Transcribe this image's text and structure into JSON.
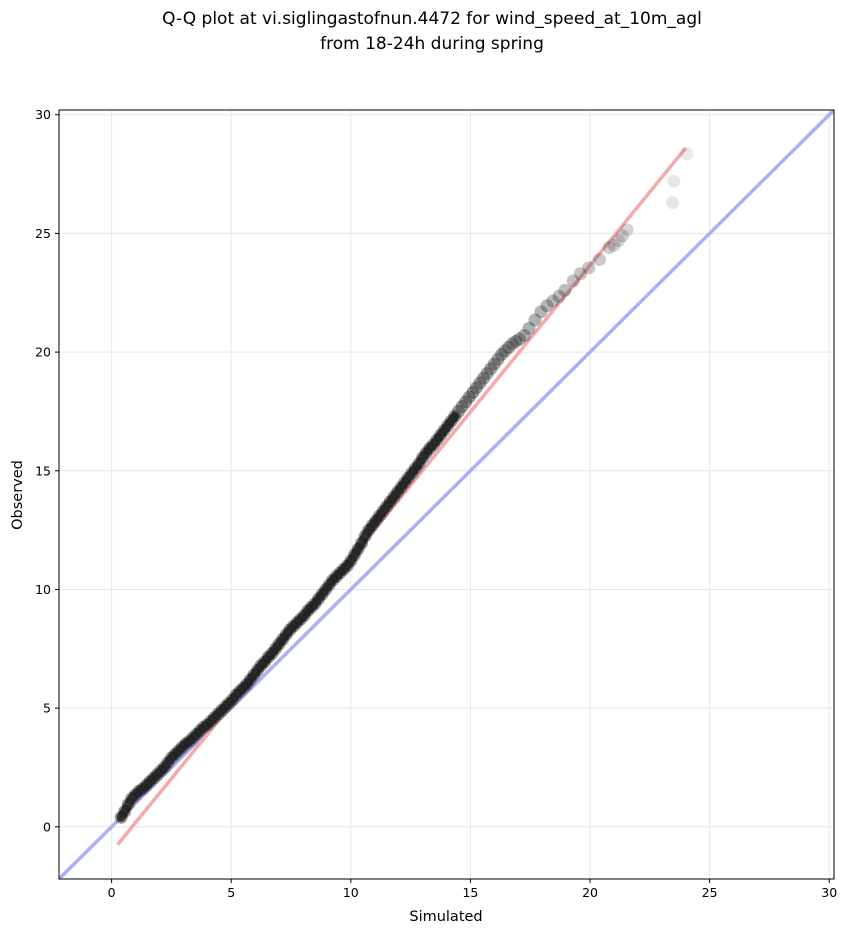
{
  "chart_data": {
    "type": "scatter",
    "title_lines": [
      "Q-Q plot at vi.siglingastofnun.4472 for wind_speed_at_10m_agl",
      "from 18-24h during spring"
    ],
    "xlabel": "Simulated",
    "ylabel": "Observed",
    "xlim": [
      -2.2,
      30.2
    ],
    "ylim": [
      -2.2,
      30.2
    ],
    "xticks": [
      0,
      5,
      10,
      15,
      20,
      25,
      30
    ],
    "yticks": [
      0,
      5,
      10,
      15,
      20,
      25,
      30
    ],
    "grid": true,
    "colors": {
      "points": "#333333",
      "identity_line": "#aab0f5",
      "fit_line": "#f5a9a9",
      "fit_line_core": "#b02020",
      "identity_core": "#2a2ab0"
    },
    "reference_lines": [
      {
        "kind": "identity",
        "x": [
          -2.2,
          30.2
        ],
        "y": [
          -2.2,
          30.2
        ]
      },
      {
        "kind": "fit",
        "x": [
          0.25,
          24.0
        ],
        "y": [
          -0.75,
          28.6
        ]
      }
    ],
    "quantiles": {
      "x": [
        0.4,
        0.55,
        0.7,
        0.85,
        1.0,
        1.15,
        1.3,
        1.45,
        1.6,
        1.75,
        1.9,
        2.05,
        2.2,
        2.35,
        2.5,
        2.65,
        2.8,
        2.95,
        3.1,
        3.25,
        3.4,
        3.55,
        3.7,
        3.85,
        4.0,
        4.15,
        4.3,
        4.45,
        4.6,
        4.75,
        4.9,
        5.05,
        5.2,
        5.35,
        5.5,
        5.65,
        5.8,
        5.95,
        6.1,
        6.25,
        6.4,
        6.55,
        6.7,
        6.85,
        7.0,
        7.15,
        7.3,
        7.45,
        7.6,
        7.75,
        7.9,
        8.05,
        8.2,
        8.35,
        8.5,
        8.65,
        8.8,
        8.95,
        9.1,
        9.25,
        9.4,
        9.55,
        9.7,
        9.85,
        10.0,
        10.15,
        10.3,
        10.45,
        10.6,
        10.75,
        10.9,
        11.05,
        11.2,
        11.35,
        11.5,
        11.65,
        11.8,
        11.95,
        12.1,
        12.25,
        12.4,
        12.55,
        12.7,
        12.85,
        13.0,
        13.15,
        13.3,
        13.45,
        13.6,
        13.75,
        13.9,
        14.05,
        14.2,
        14.35,
        14.5,
        14.65,
        14.8,
        14.95,
        15.1,
        15.25,
        15.4,
        15.55,
        15.7,
        15.85,
        16.0,
        16.15,
        16.3,
        16.45,
        16.6,
        16.75,
        16.9,
        17.05,
        17.25,
        17.45,
        17.7,
        17.95,
        18.2,
        18.45,
        18.7,
        18.95,
        19.3,
        19.6,
        19.95,
        20.4,
        20.8,
        21.0,
        21.2,
        21.35,
        21.55,
        23.45,
        23.5,
        24.05
      ],
      "y": [
        0.4,
        0.65,
        0.95,
        1.2,
        1.35,
        1.5,
        1.6,
        1.75,
        1.9,
        2.05,
        2.2,
        2.35,
        2.5,
        2.7,
        2.9,
        3.05,
        3.2,
        3.35,
        3.5,
        3.6,
        3.75,
        3.9,
        4.05,
        4.2,
        4.3,
        4.45,
        4.6,
        4.75,
        4.9,
        5.05,
        5.2,
        5.35,
        5.55,
        5.7,
        5.85,
        6.0,
        6.2,
        6.4,
        6.6,
        6.8,
        6.95,
        7.15,
        7.3,
        7.5,
        7.7,
        7.9,
        8.1,
        8.3,
        8.45,
        8.6,
        8.75,
        8.9,
        9.1,
        9.25,
        9.4,
        9.6,
        9.8,
        10.0,
        10.2,
        10.4,
        10.55,
        10.7,
        10.85,
        11.0,
        11.2,
        11.45,
        11.7,
        11.95,
        12.25,
        12.5,
        12.7,
        12.9,
        13.1,
        13.3,
        13.5,
        13.7,
        13.9,
        14.1,
        14.3,
        14.5,
        14.7,
        14.9,
        15.1,
        15.3,
        15.55,
        15.75,
        15.95,
        16.1,
        16.3,
        16.5,
        16.7,
        16.9,
        17.1,
        17.3,
        17.5,
        17.7,
        17.9,
        18.1,
        18.3,
        18.5,
        18.7,
        18.9,
        19.1,
        19.3,
        19.5,
        19.7,
        19.9,
        20.05,
        20.2,
        20.35,
        20.45,
        20.55,
        20.7,
        21.0,
        21.35,
        21.7,
        21.95,
        22.15,
        22.35,
        22.6,
        23.0,
        23.3,
        23.55,
        23.9,
        24.4,
        24.5,
        24.7,
        24.9,
        25.15,
        26.3,
        27.2,
        28.35
      ]
    }
  }
}
